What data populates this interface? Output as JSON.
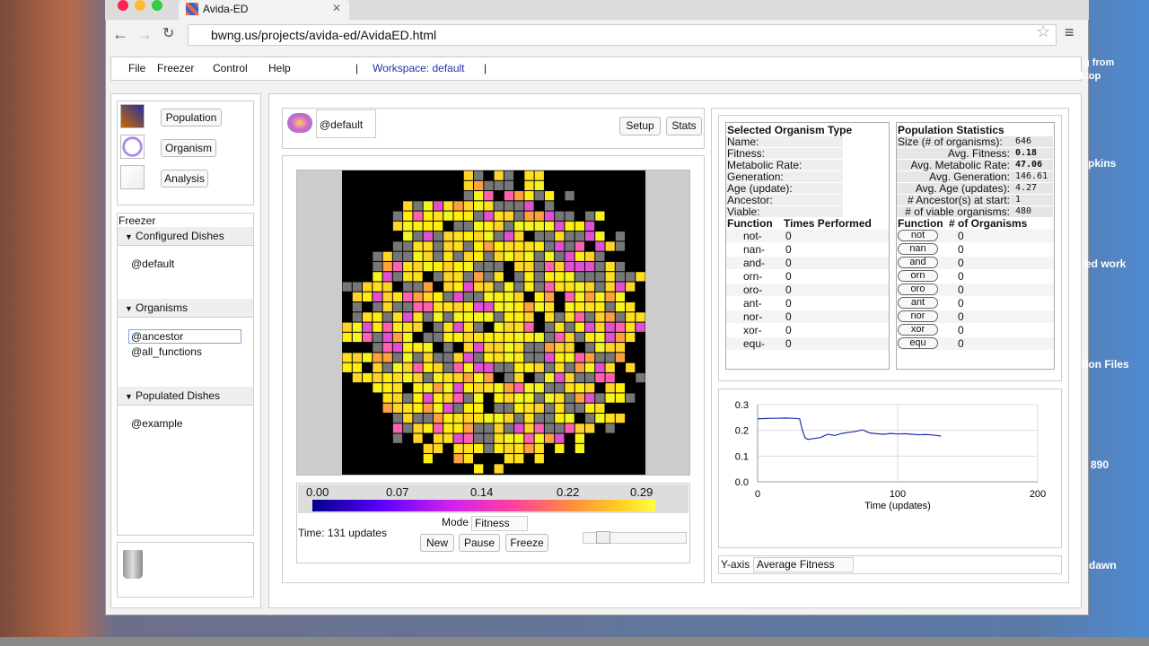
{
  "browser": {
    "tab_title": "Avida-ED",
    "url": "bwng.us/projects/avida-ed/AvidaED.html"
  },
  "menu": {
    "items": [
      "File",
      "Freezer",
      "Control",
      "Help"
    ],
    "workspace": "Workspace: default"
  },
  "nav": [
    "Population",
    "Organism",
    "Analysis"
  ],
  "freezer": {
    "title": "Freezer",
    "sections": [
      {
        "title": "Configured Dishes",
        "items": [
          "@default"
        ]
      },
      {
        "title": "Organisms",
        "items": [
          "@ancestor",
          "@all_functions"
        ]
      },
      {
        "title": "Populated Dishes",
        "items": [
          "@example"
        ]
      }
    ]
  },
  "dish": {
    "name": "@default",
    "buttons": [
      "Setup",
      "Stats"
    ],
    "scale_labels": [
      "0.00",
      "0.07",
      "0.14",
      "0.22",
      "0.29"
    ],
    "time": "Time: 131 updates",
    "mode_label": "Mode",
    "mode": "Fitness",
    "controls": [
      "New",
      "Pause",
      "Freeze"
    ]
  },
  "selected": {
    "title": "Selected Organism Type",
    "fields": [
      "Name:",
      "Fitness:",
      "Metabolic Rate:",
      "Generation:",
      "Age (update):",
      "Ancestor:",
      "Viable:"
    ],
    "function_header": [
      "Function",
      "Times Performed"
    ],
    "functions": [
      [
        "not-",
        0
      ],
      [
        "nan-",
        0
      ],
      [
        "and-",
        0
      ],
      [
        "orn-",
        0
      ],
      [
        "oro-",
        0
      ],
      [
        "ant-",
        0
      ],
      [
        "nor-",
        0
      ],
      [
        "xor-",
        0
      ],
      [
        "equ-",
        0
      ]
    ]
  },
  "population": {
    "title": "Population Statistics",
    "stats": [
      [
        "Size (# of organisms):",
        646
      ],
      [
        "Avg. Fitness:",
        0.18
      ],
      [
        "Avg. Metabolic Rate:",
        47.06
      ],
      [
        "Avg. Generation:",
        146.61
      ],
      [
        "Avg. Age (updates):",
        4.27
      ],
      [
        "# Ancestor(s) at start:",
        1
      ],
      [
        "# of viable organisms:",
        480
      ]
    ],
    "function_header": [
      "Function",
      "# of Organisms"
    ],
    "functions": [
      [
        "not",
        0
      ],
      [
        "nan",
        0
      ],
      [
        "and",
        0
      ],
      [
        "orn",
        0
      ],
      [
        "oro",
        0
      ],
      [
        "ant",
        0
      ],
      [
        "nor",
        0
      ],
      [
        "xor",
        0
      ],
      [
        "equ",
        0
      ]
    ]
  },
  "graph_controls": {
    "label": "Y-axis",
    "select": "Average Fitness"
  },
  "desktop": [
    "g from",
    "ktop",
    "pkins",
    "ed work",
    "tion Files",
    "890",
    "dawn"
  ],
  "chart_data": {
    "type": "line",
    "xlabel": "Time (updates)",
    "x": [
      0,
      5,
      10,
      15,
      20,
      25,
      30,
      32,
      34,
      36,
      40,
      45,
      50,
      55,
      60,
      65,
      70,
      75,
      80,
      85,
      90,
      95,
      100,
      105,
      110,
      115,
      120,
      125,
      131
    ],
    "series": [
      {
        "name": "Average Fitness",
        "color": "#1f2fb0",
        "values": [
          0.245,
          0.246,
          0.247,
          0.247,
          0.248,
          0.247,
          0.245,
          0.2,
          0.17,
          0.165,
          0.168,
          0.172,
          0.185,
          0.18,
          0.188,
          0.192,
          0.196,
          0.202,
          0.19,
          0.187,
          0.185,
          0.188,
          0.186,
          0.187,
          0.185,
          0.183,
          0.184,
          0.182,
          0.178
        ]
      }
    ],
    "xlim": [
      0,
      200
    ],
    "ylim": [
      0,
      0.3
    ],
    "xticks": [
      0,
      100,
      200
    ],
    "yticks": [
      {
        "value": 0,
        "label": "0.0"
      },
      {
        "value": 0.1,
        "label": "0.1"
      },
      {
        "value": 0.2,
        "label": "0.2"
      },
      {
        "value": 0.3,
        "label": "0.3"
      }
    ],
    "grid": true
  }
}
